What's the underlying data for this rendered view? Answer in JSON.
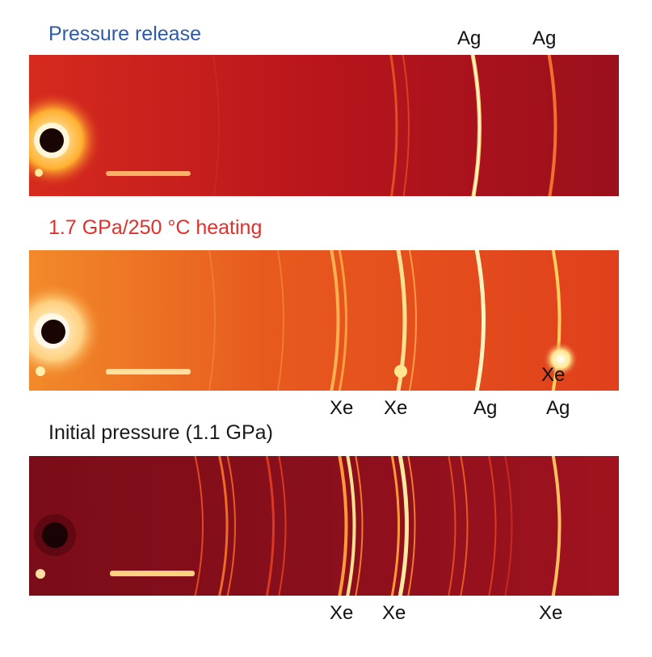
{
  "panels": [
    {
      "title": "Pressure release",
      "title_color": "#2e5aa8",
      "labels_top": [
        "Ag",
        "Ag"
      ],
      "labels_inside": [],
      "labels_bottom": []
    },
    {
      "title": "1.7 GPa/250 °C heating",
      "title_color": "#e0302a",
      "labels_top": [],
      "labels_inside": [
        "Xe"
      ],
      "labels_bottom": [
        "Xe",
        "Xe",
        "Ag",
        "Ag"
      ]
    },
    {
      "title": "Initial pressure (1.1 GPa)",
      "title_color": "#1a1a1a",
      "labels_top": [],
      "labels_inside": [],
      "labels_bottom": [
        "Xe",
        "Xe",
        "Xe"
      ]
    }
  ],
  "colors": {
    "panel1_background": "#b8141b",
    "panel2_background": "#e2471c",
    "panel3_background": "#8a0f1c",
    "ring_highlight": "#fff1a0"
  }
}
